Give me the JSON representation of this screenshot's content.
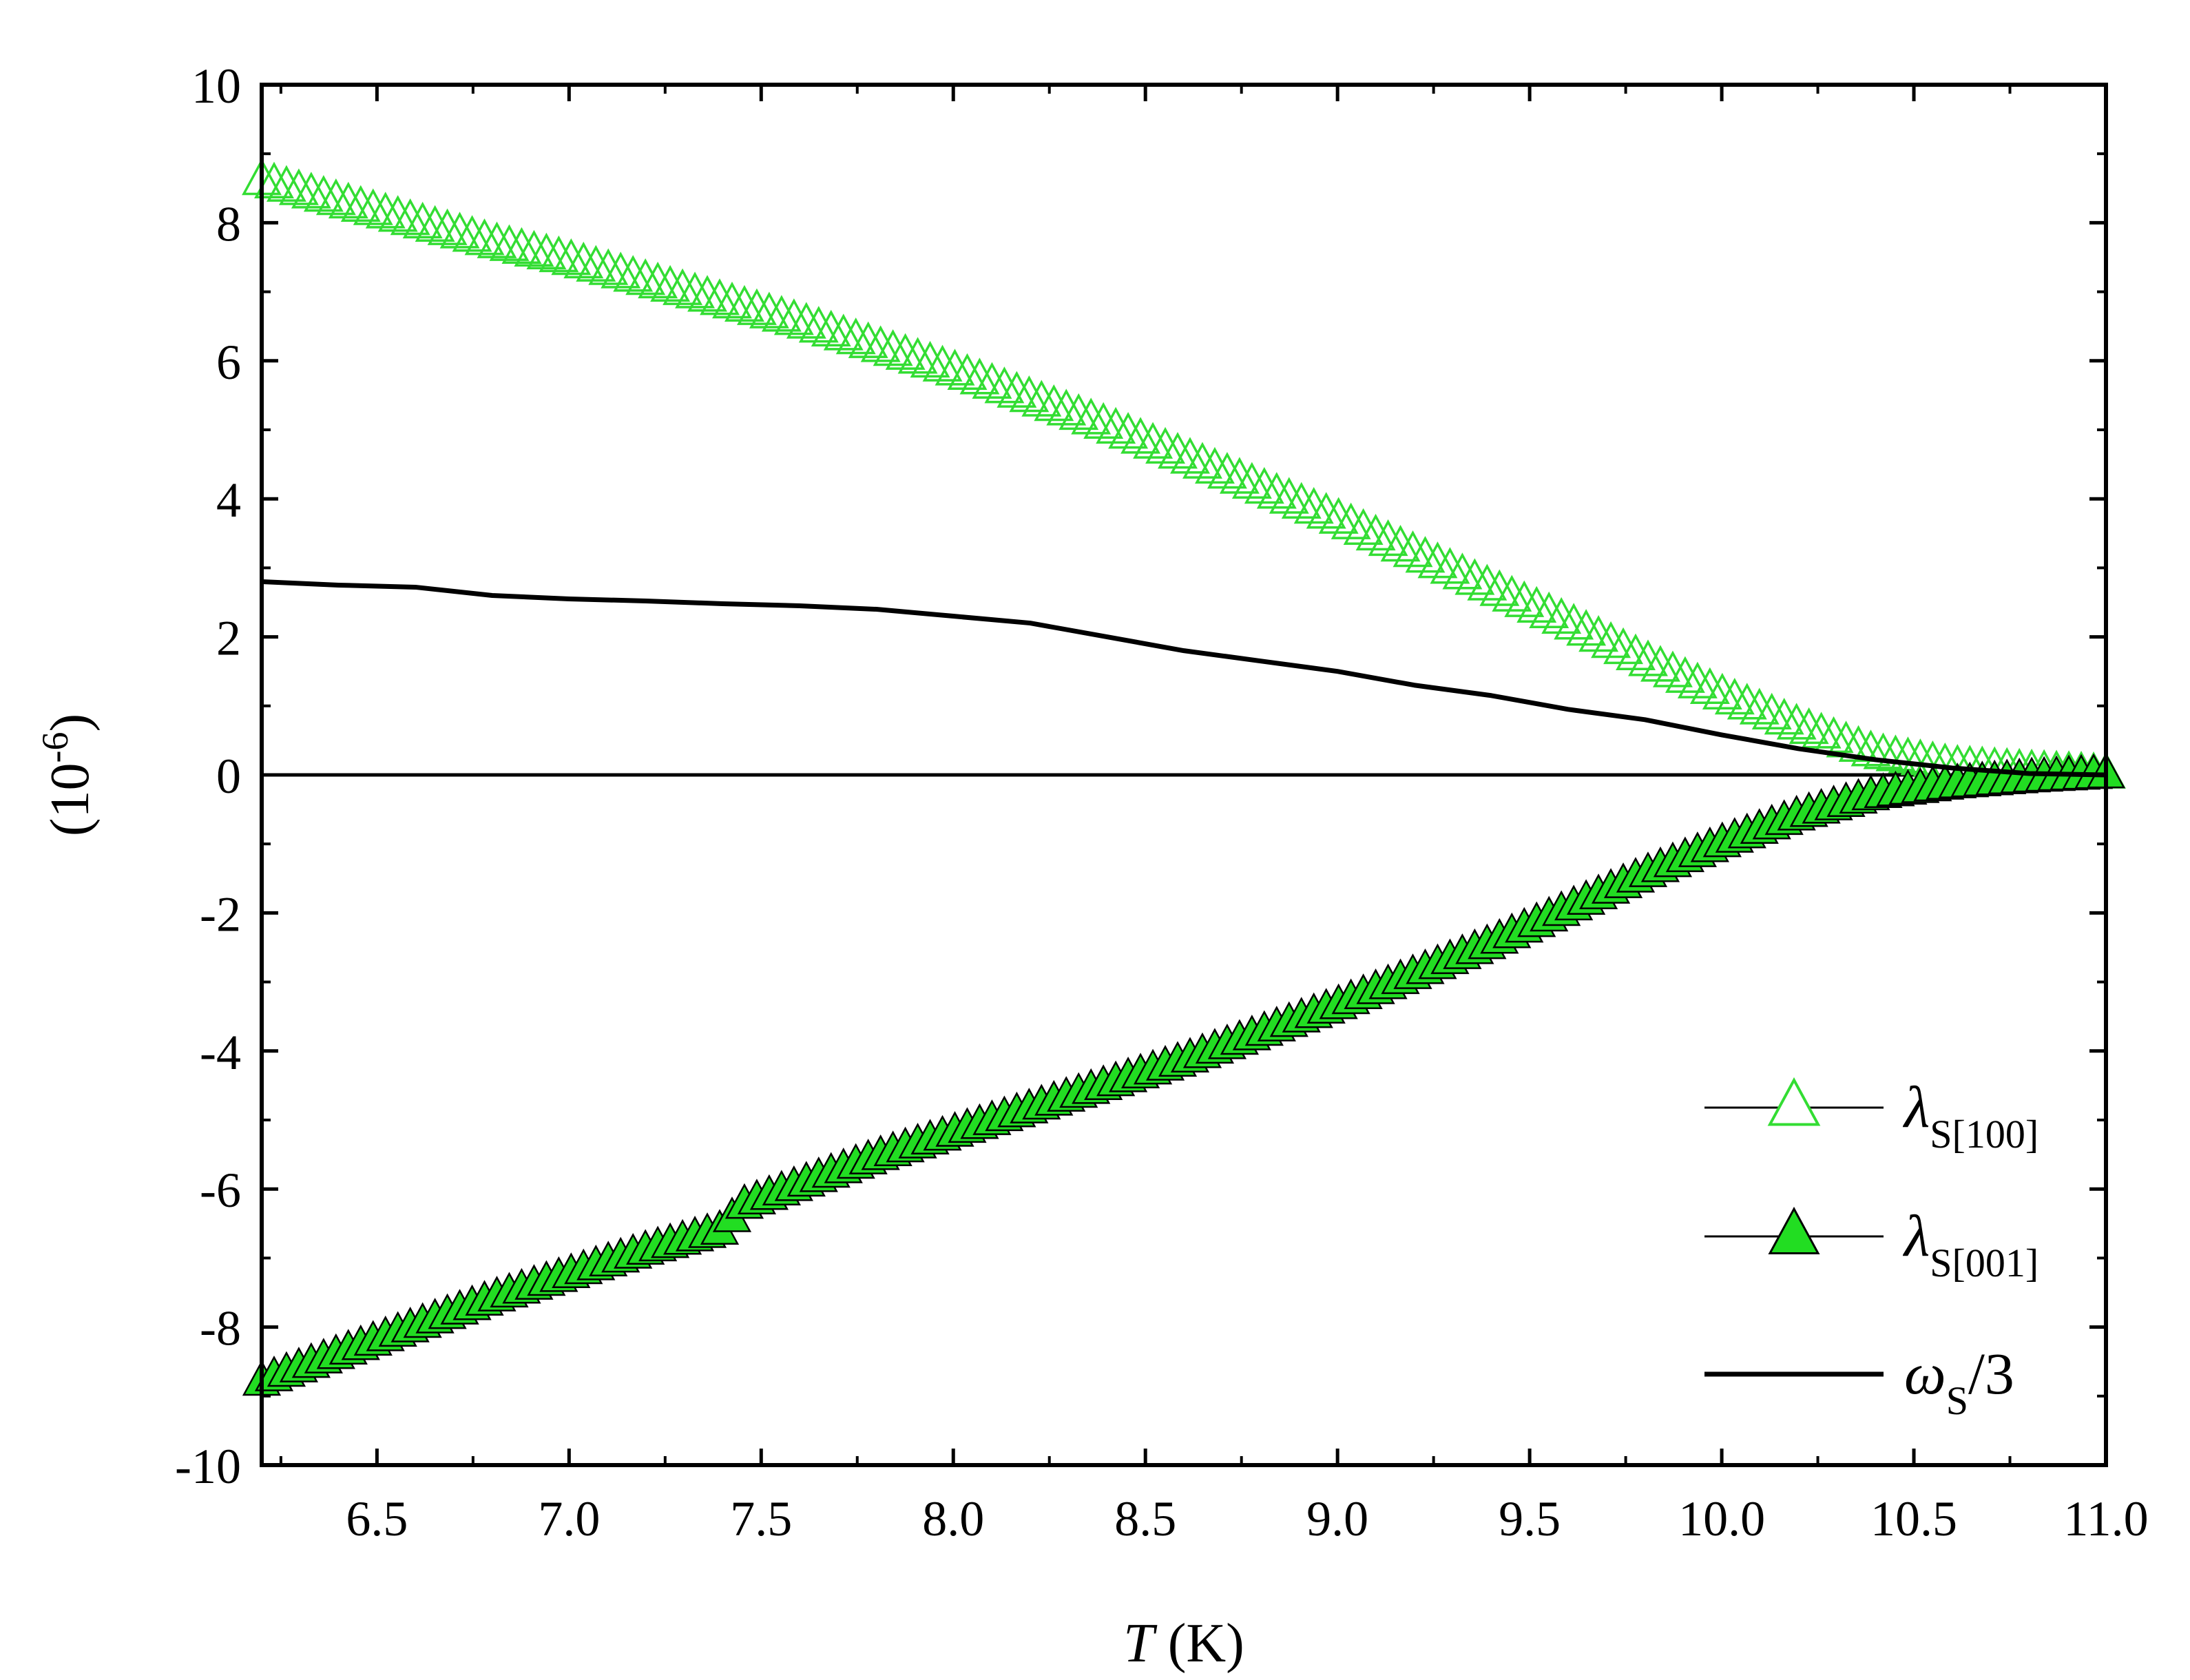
{
  "chart_data": {
    "type": "line",
    "title": "",
    "xlabel": {
      "var": "T",
      "unit": " (K)"
    },
    "ylabel": "(10-6)",
    "ylabel_base": "(10",
    "ylabel_exp": "-6",
    "ylabel_close": ")",
    "xlim": [
      6.2,
      11.0
    ],
    "ylim": [
      -10,
      10
    ],
    "xticks": [
      6.5,
      7.0,
      7.5,
      8.0,
      8.5,
      9.0,
      9.5,
      10.0,
      10.5,
      11.0
    ],
    "xtick_labels": [
      "6.5",
      "7.0",
      "7.5",
      "8.0",
      "8.5",
      "9.0",
      "9.5",
      "10.0",
      "10.5",
      "11.0"
    ],
    "yticks": [
      -10,
      -8,
      -6,
      -4,
      -2,
      0,
      2,
      4,
      6,
      8,
      10
    ],
    "ytick_labels": [
      "-10",
      "-8",
      "-6",
      "-4",
      "-2",
      "0",
      "2",
      "4",
      "6",
      "8",
      "10"
    ],
    "grid": false,
    "zero_line": true,
    "legend_position": "bottom-right",
    "colors": {
      "green": "#33dd33",
      "green_fill": "#22dd22",
      "black": "#000000"
    },
    "series": [
      {
        "name": "λS[100]",
        "name_main": "λ",
        "name_sub": "S[100]",
        "marker": "triangle-open",
        "color": "#33dd33",
        "x": [
          6.2,
          6.4,
          6.6,
          6.8,
          7.0,
          7.2,
          7.4,
          7.6,
          7.8,
          8.0,
          8.2,
          8.4,
          8.6,
          8.8,
          9.0,
          9.2,
          9.4,
          9.6,
          9.8,
          10.0,
          10.2,
          10.4,
          10.6,
          10.8,
          11.0
        ],
        "y": [
          8.6,
          8.3,
          8.0,
          7.7,
          7.45,
          7.15,
          6.85,
          6.55,
          6.2,
          5.85,
          5.45,
          5.05,
          4.6,
          4.15,
          3.7,
          3.2,
          2.7,
          2.2,
          1.65,
          1.15,
          0.7,
          0.3,
          0.12,
          0.05,
          0.0
        ]
      },
      {
        "name": "λS[001]",
        "name_main": "λ",
        "name_sub": "S[001]",
        "marker": "triangle-filled",
        "color": "#22dd22",
        "x": [
          6.2,
          6.4,
          6.6,
          6.8,
          7.0,
          7.2,
          7.4,
          7.45,
          7.6,
          7.8,
          8.0,
          8.2,
          8.4,
          8.6,
          8.8,
          9.0,
          9.2,
          9.4,
          9.6,
          9.8,
          10.0,
          10.2,
          10.4,
          10.6,
          10.8,
          11.0
        ],
        "y": [
          -8.8,
          -8.4,
          -8.0,
          -7.6,
          -7.25,
          -6.9,
          -6.6,
          -6.25,
          -5.95,
          -5.55,
          -5.2,
          -4.85,
          -4.5,
          -4.15,
          -3.75,
          -3.35,
          -2.9,
          -2.45,
          -1.95,
          -1.45,
          -1.0,
          -0.6,
          -0.3,
          -0.15,
          -0.06,
          0.0
        ]
      },
      {
        "name": "ωS/3",
        "name_main": "ω",
        "name_sub": "S",
        "name_tail": "/3",
        "marker": "none",
        "color": "#000000",
        "x": [
          6.2,
          6.4,
          6.6,
          6.8,
          7.0,
          7.2,
          7.4,
          7.6,
          7.8,
          8.0,
          8.2,
          8.4,
          8.6,
          8.8,
          9.0,
          9.2,
          9.4,
          9.6,
          9.8,
          10.0,
          10.2,
          10.4,
          10.6,
          10.8,
          11.0
        ],
        "y": [
          2.8,
          2.75,
          2.72,
          2.6,
          2.55,
          2.52,
          2.48,
          2.45,
          2.4,
          2.3,
          2.2,
          2.0,
          1.8,
          1.65,
          1.5,
          1.3,
          1.15,
          0.95,
          0.8,
          0.58,
          0.38,
          0.22,
          0.1,
          0.02,
          0.0
        ]
      }
    ]
  }
}
